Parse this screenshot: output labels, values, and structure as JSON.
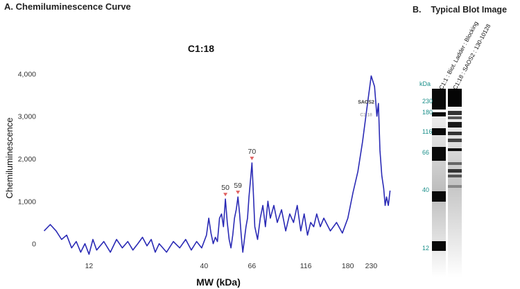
{
  "panel_a": {
    "title": "A. Chemiluminescence Curve"
  },
  "panel_b": {
    "label": "B.",
    "title": "Typical Blot Image"
  },
  "chart_data": {
    "type": "line",
    "title": "C1:18",
    "xlabel": "MW (kDa)",
    "ylabel": "Chemiluminescence",
    "x_scale": "log",
    "xticks": [
      12,
      40,
      66,
      116,
      180,
      230
    ],
    "yticks": [
      0,
      1000,
      2000,
      3000,
      4000
    ],
    "ytick_labels": [
      "0",
      "1,000",
      "2,000",
      "3,000",
      "4,000"
    ],
    "ylim": [
      -300,
      4300
    ],
    "line_color": "#2a2ab5",
    "grid": false,
    "series": [
      {
        "points": [
          [
            7.5,
            300
          ],
          [
            8.0,
            450
          ],
          [
            8.5,
            300
          ],
          [
            9.0,
            100
          ],
          [
            9.5,
            200
          ],
          [
            10,
            -100
          ],
          [
            10.5,
            50
          ],
          [
            11,
            -200
          ],
          [
            11.5,
            0
          ],
          [
            12,
            -250
          ],
          [
            12.5,
            100
          ],
          [
            13,
            -150
          ],
          [
            14,
            50
          ],
          [
            15,
            -200
          ],
          [
            16,
            100
          ],
          [
            17,
            -100
          ],
          [
            18,
            50
          ],
          [
            19,
            -150
          ],
          [
            20,
            0
          ],
          [
            21,
            150
          ],
          [
            22,
            -50
          ],
          [
            23,
            100
          ],
          [
            24,
            -200
          ],
          [
            25,
            0
          ],
          [
            27,
            -200
          ],
          [
            29,
            50
          ],
          [
            31,
            -100
          ],
          [
            33,
            100
          ],
          [
            35,
            -150
          ],
          [
            37,
            50
          ],
          [
            39,
            -100
          ],
          [
            41,
            200
          ],
          [
            42,
            600
          ],
          [
            43,
            250
          ],
          [
            44,
            0
          ],
          [
            45,
            150
          ],
          [
            46,
            50
          ],
          [
            47,
            600
          ],
          [
            48,
            700
          ],
          [
            49,
            400
          ],
          [
            50,
            1050
          ],
          [
            51,
            500
          ],
          [
            52,
            100
          ],
          [
            53,
            -100
          ],
          [
            54,
            200
          ],
          [
            55,
            600
          ],
          [
            56,
            800
          ],
          [
            57,
            1100
          ],
          [
            58,
            700
          ],
          [
            59,
            200
          ],
          [
            60,
            -200
          ],
          [
            61,
            100
          ],
          [
            62,
            400
          ],
          [
            63,
            600
          ],
          [
            64,
            1100
          ],
          [
            65,
            1500
          ],
          [
            66,
            1900
          ],
          [
            67,
            1200
          ],
          [
            68,
            400
          ],
          [
            70,
            100
          ],
          [
            72,
            600
          ],
          [
            74,
            900
          ],
          [
            76,
            400
          ],
          [
            78,
            1000
          ],
          [
            80,
            600
          ],
          [
            83,
            900
          ],
          [
            86,
            500
          ],
          [
            90,
            800
          ],
          [
            94,
            300
          ],
          [
            98,
            700
          ],
          [
            102,
            500
          ],
          [
            106,
            900
          ],
          [
            110,
            300
          ],
          [
            114,
            700
          ],
          [
            118,
            200
          ],
          [
            122,
            500
          ],
          [
            126,
            400
          ],
          [
            130,
            700
          ],
          [
            135,
            400
          ],
          [
            140,
            600
          ],
          [
            150,
            300
          ],
          [
            160,
            500
          ],
          [
            170,
            250
          ],
          [
            180,
            600
          ],
          [
            190,
            1200
          ],
          [
            200,
            1700
          ],
          [
            210,
            2400
          ],
          [
            220,
            3200
          ],
          [
            230,
            3950
          ],
          [
            238,
            3700
          ],
          [
            244,
            3000
          ],
          [
            248,
            3300
          ],
          [
            252,
            2200
          ],
          [
            257,
            1600
          ],
          [
            262,
            1300
          ],
          [
            266,
            900
          ],
          [
            270,
            1100
          ],
          [
            275,
            900
          ],
          [
            280,
            1250
          ]
        ]
      }
    ],
    "annotations": [
      {
        "text": "50",
        "x": 50,
        "y": 1050,
        "marker_color": "#e06060"
      },
      {
        "text": "59",
        "x": 57,
        "y": 1100,
        "marker_color": "#e06060"
      },
      {
        "text": "70",
        "x": 66,
        "y": 1900,
        "marker_color": "#e06060"
      },
      {
        "text": "SAOS2",
        "x": 218,
        "y": 3300
      },
      {
        "text": "C1:18",
        "x": 218,
        "y": 3000
      }
    ]
  },
  "blot": {
    "unit_label": "kDa",
    "lanes": [
      {
        "name": "C1:1 : Biot. Ladder : Blocking"
      },
      {
        "name": "C1:18 : SAOS2 : 130-10128"
      }
    ],
    "ladder_marks": [
      "230",
      "180",
      "116",
      "66",
      "40",
      "12"
    ],
    "label_color": "#1a8f8a"
  }
}
